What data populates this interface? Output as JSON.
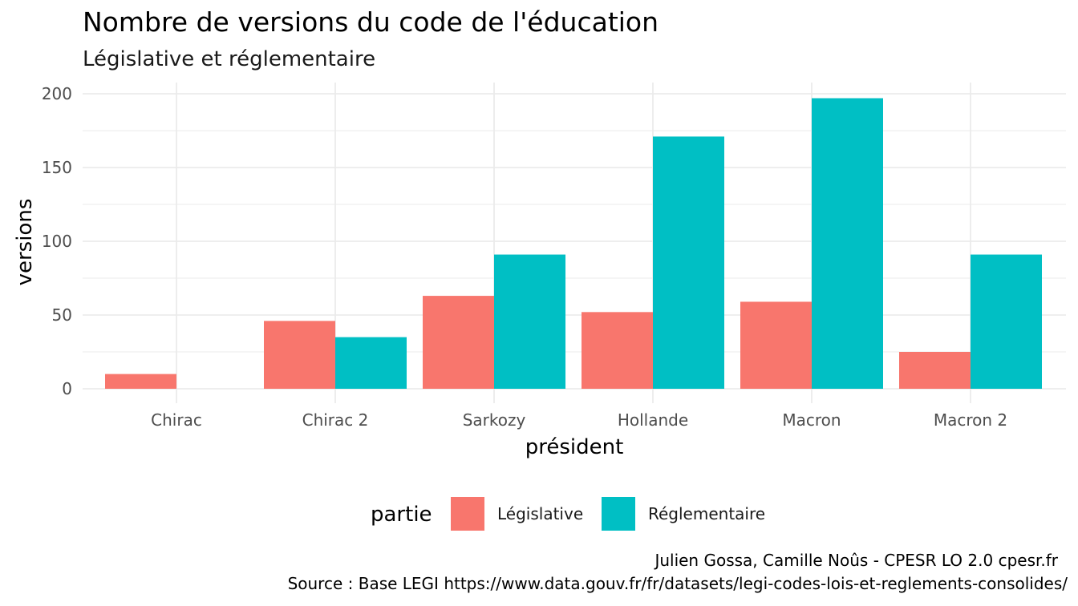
{
  "chart_data": {
    "type": "bar",
    "title": "Nombre de versions du code de l'éducation",
    "subtitle": "Législative et réglementaire",
    "xlabel": "président",
    "ylabel": "versions",
    "categories": [
      "Chirac",
      "Chirac 2",
      "Sarkozy",
      "Hollande",
      "Macron",
      "Macron 2"
    ],
    "series": [
      {
        "name": "Législative",
        "color": "#F8766D",
        "values": [
          10,
          46,
          63,
          52,
          59,
          25
        ]
      },
      {
        "name": "Réglementaire",
        "color": "#00BFC4",
        "values": [
          null,
          35,
          91,
          171,
          197,
          91
        ]
      }
    ],
    "ylim": [
      0,
      200
    ],
    "yticks": [
      0,
      50,
      100,
      150,
      200
    ],
    "ytick_labels": [
      "0",
      "50",
      "100",
      "150",
      "200"
    ],
    "grid": true,
    "legend": {
      "title": "partie",
      "position": "bottom"
    },
    "caption_line1": "Julien Gossa, Camille Noûs - CPESR LO 2.0 cpesr.fr ",
    "caption_line2": "Source : Base LEGI https://www.data.gouv.fr/fr/datasets/legi-codes-lois-et-reglements-consolides/"
  }
}
